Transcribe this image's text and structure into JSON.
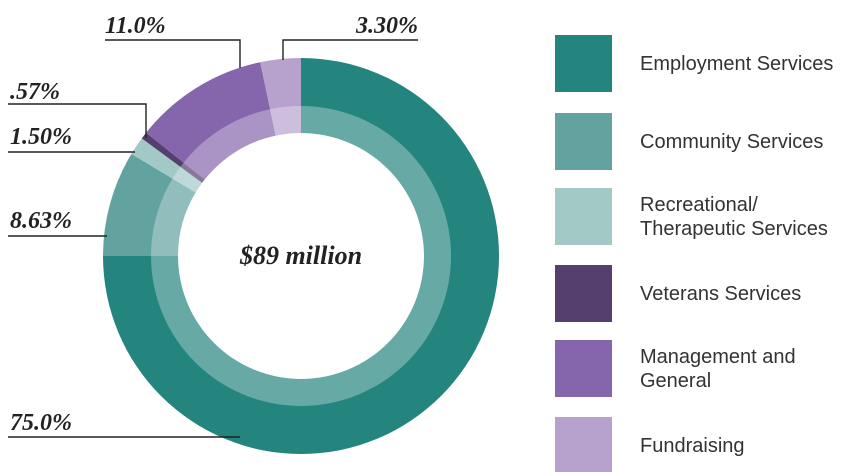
{
  "chart_data": {
    "type": "pie",
    "annotation": "$89 million",
    "categories": [
      "Employment Services",
      "Community Services",
      "Recreational/ Therapeutic Services",
      "Veterans Services",
      "Management and General",
      "Fundraising"
    ],
    "values": [
      75.0,
      8.63,
      1.5,
      0.57,
      11.0,
      3.3
    ],
    "value_labels": [
      "75.0%",
      "8.63%",
      "1.50%",
      ".57%",
      "11.0%",
      "3.30%"
    ],
    "colors": [
      "#24857f",
      "#62a39f",
      "#a3c9c6",
      "#543f6e",
      "#8566ac",
      "#b7a2cd"
    ],
    "legend": "right"
  }
}
